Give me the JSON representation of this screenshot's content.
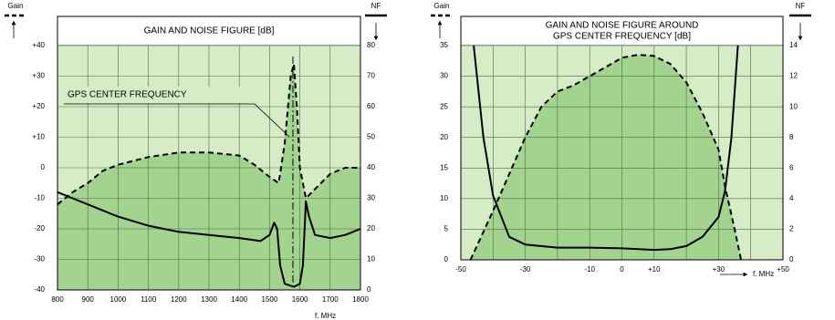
{
  "chart_data": [
    {
      "type": "line",
      "title": [
        "GAIN AND NOISE FIGURE [dB]"
      ],
      "xlabel": "f. MHz",
      "annotation": "GPS CENTER FREQUENCY",
      "background_color": "#d6ecc6",
      "xlim": [
        800,
        1800
      ],
      "xticks": [
        800,
        900,
        1000,
        1100,
        1200,
        1300,
        1400,
        1500,
        1600,
        1700,
        1800
      ],
      "ylim": [
        -40,
        40
      ],
      "yticks": [
        -40,
        -30,
        -20,
        -10,
        0,
        {
          "value": 10,
          "label": "+10"
        },
        {
          "value": 20,
          "label": "+20"
        },
        {
          "value": 30,
          "label": "+30"
        },
        {
          "value": 40,
          "label": "+40"
        }
      ],
      "y2lim": [
        0,
        80
      ],
      "y2ticks": [
        0,
        10,
        20,
        30,
        40,
        50,
        60,
        70,
        80
      ],
      "grid": true,
      "series": [
        {
          "name": "Gain",
          "color": "#000000",
          "dash": true,
          "fill_color": "#a2d38f",
          "x": [
            800,
            850,
            900,
            950,
            1000,
            1100,
            1200,
            1300,
            1400,
            1450,
            1500,
            1530,
            1550,
            1570,
            1580,
            1590,
            1600,
            1620,
            1650,
            1700,
            1750,
            1800
          ],
          "values": [
            -12,
            -8,
            -5,
            -1,
            1,
            3.5,
            5,
            5,
            4,
            1,
            -3,
            -5,
            8,
            30,
            34,
            20,
            0,
            -10,
            -7,
            -2,
            0,
            0
          ]
        },
        {
          "name": "NF",
          "color": "#000000",
          "axis": "y2",
          "x": [
            800,
            850,
            900,
            1000,
            1100,
            1200,
            1300,
            1400,
            1470,
            1500,
            1515,
            1525,
            1535,
            1550,
            1580,
            1600,
            1610,
            1620,
            1630,
            1650,
            1700,
            1750,
            1800
          ],
          "values": [
            32,
            30,
            28,
            24,
            21,
            19,
            18,
            17,
            16,
            18,
            22,
            20,
            8,
            2,
            1,
            2,
            8,
            29,
            24,
            18,
            17,
            18,
            20
          ]
        }
      ]
    },
    {
      "type": "line",
      "title": [
        "GAIN AND NOISE FIGURE AROUND",
        "GPS CENTER FREQUENCY [dB]"
      ],
      "xlabel": "f. MHz",
      "background_color": "#d6ecc6",
      "xlim": [
        -50,
        50
      ],
      "xticks": [
        -50,
        -30,
        -10,
        0,
        {
          "value": 10,
          "label": "+10"
        },
        {
          "value": 30,
          "label": "+30"
        },
        {
          "value": 50,
          "label": "+50"
        }
      ],
      "minor_xticks": [
        -40,
        -20,
        20,
        40
      ],
      "ylim": [
        0,
        35
      ],
      "yticks": [
        0,
        5,
        10,
        15,
        20,
        25,
        30,
        35
      ],
      "y2lim": [
        0,
        14
      ],
      "y2ticks": [
        0,
        2,
        4,
        6,
        8,
        10,
        12,
        14
      ],
      "grid": true,
      "series": [
        {
          "name": "Gain",
          "color": "#000000",
          "dash": true,
          "fill_color": "#a2d38f",
          "x": [
            -47,
            -40,
            -35,
            -30,
            -25,
            -20,
            -15,
            -10,
            -5,
            0,
            5,
            10,
            15,
            20,
            25,
            30,
            32,
            35,
            37
          ],
          "values": [
            0,
            8,
            14,
            20,
            25,
            27.5,
            28.5,
            30,
            31.5,
            33,
            33.5,
            33.3,
            32,
            29,
            24,
            18,
            12,
            5,
            0
          ]
        },
        {
          "name": "NF",
          "color": "#000000",
          "axis": "y2",
          "x": [
            -46,
            -43,
            -40,
            -35,
            -30,
            -20,
            -10,
            0,
            10,
            15,
            20,
            25,
            30,
            32,
            34,
            36
          ],
          "values": [
            14,
            8,
            4.2,
            1.5,
            1.0,
            0.8,
            0.8,
            0.75,
            0.65,
            0.7,
            0.9,
            1.5,
            2.8,
            4.5,
            8,
            14
          ]
        }
      ]
    }
  ]
}
